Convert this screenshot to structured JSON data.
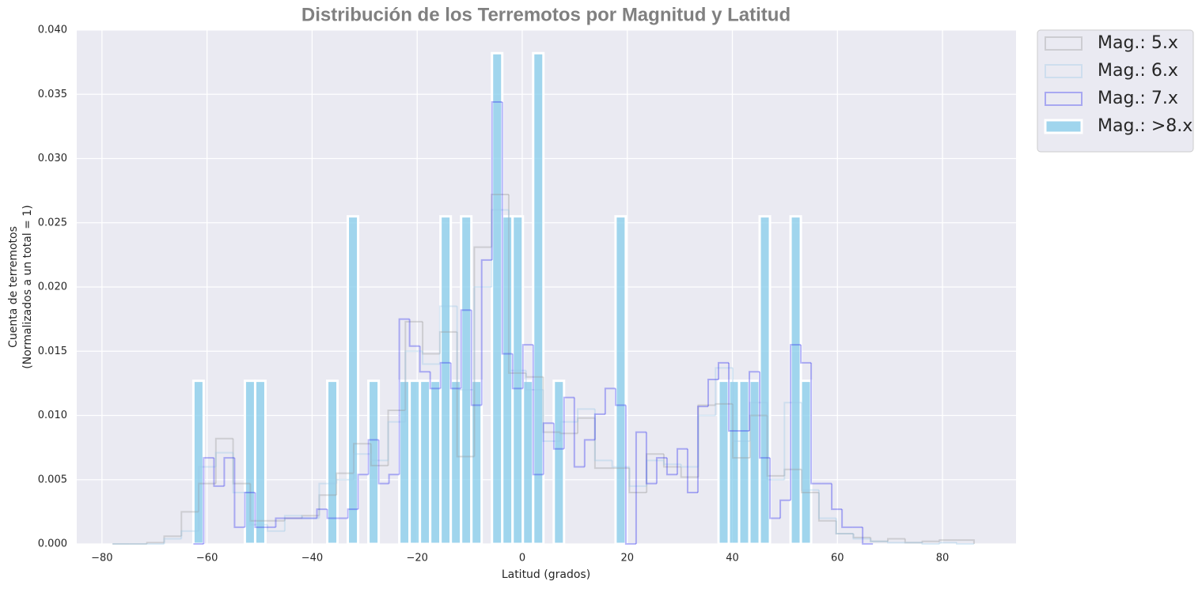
{
  "chart_data": {
    "type": "histogram",
    "title": "Distribución de los Terremotos por Magnitud y Latitud",
    "xlabel": "Latitud (grados)",
    "ylabel": [
      "Cuenta de terremotos",
      "(Normalizados a un total = 1)"
    ],
    "xlim": [
      -84.8,
      94.0
    ],
    "ylim": [
      0,
      0.04
    ],
    "xticks": [
      {
        "value": -80,
        "label": "−80"
      },
      {
        "value": -60,
        "label": "−60"
      },
      {
        "value": -40,
        "label": "−40"
      },
      {
        "value": -20,
        "label": "−20"
      },
      0,
      20,
      40,
      60,
      80
    ],
    "yticks": [
      {
        "value": 0,
        "label": "0.000"
      },
      {
        "value": 0.005,
        "label": "0.005"
      },
      {
        "value": 0.01,
        "label": "0.010"
      },
      {
        "value": 0.015,
        "label": "0.015"
      },
      {
        "value": 0.02,
        "label": "0.020"
      },
      {
        "value": 0.025,
        "label": "0.025"
      },
      {
        "value": 0.03,
        "label": "0.030"
      },
      {
        "value": 0.035,
        "label": "0.035"
      },
      {
        "value": 0.04,
        "label": "0.040"
      }
    ],
    "grid": true,
    "legend": "outside-upper-right",
    "series": [
      {
        "name": "Mag.: 5.x",
        "color": "#999999",
        "alpha": 0.35,
        "histtype": "step",
        "bins": [
          -78,
          -74.72,
          -71.44,
          -68.16,
          -64.88,
          -61.6,
          -58.32,
          -55.04,
          -51.76,
          -48.48,
          -45.2,
          -41.92,
          -38.64,
          -35.36,
          -32.08,
          -28.8,
          -25.52,
          -22.24,
          -18.96,
          -15.68,
          -12.4,
          -9.12,
          -5.84,
          -2.56,
          0.72,
          4.0,
          7.28,
          10.56,
          13.84,
          17.12,
          20.4,
          23.68,
          26.96,
          30.24,
          33.52,
          36.8,
          40.08,
          43.36,
          46.64,
          49.92,
          53.2,
          56.48,
          59.76,
          63.04,
          66.32,
          69.6,
          72.88,
          76.16,
          79.44,
          82.72,
          86.0
        ],
        "values": [
          0,
          0,
          0.0001,
          0.0006,
          0.0025,
          0.0047,
          0.0082,
          0.0047,
          0.0018,
          0.0018,
          0.002,
          0.0022,
          0.0038,
          0.0055,
          0.0078,
          0.0061,
          0.0104,
          0.0173,
          0.0148,
          0.0165,
          0.0068,
          0.0231,
          0.0272,
          0.0133,
          0.013,
          0.0087,
          0.0086,
          0.0098,
          0.0059,
          0.0059,
          0.004,
          0.007,
          0.006,
          0.0052,
          0.0108,
          0.0109,
          0.0067,
          0.01,
          0.0053,
          0.0058,
          0.004,
          0.0018,
          0.0008,
          0.0005,
          0.0002,
          0.0004,
          0.0001,
          0.0002,
          0.0003,
          0.0003
        ]
      },
      {
        "name": "Mag.: 6.x",
        "color": "#9cc8e8",
        "alpha": 0.35,
        "histtype": "step",
        "bins": [
          -78,
          -74.72,
          -71.44,
          -68.16,
          -64.88,
          -61.6,
          -58.32,
          -55.04,
          -51.76,
          -48.48,
          -45.2,
          -41.92,
          -38.64,
          -35.36,
          -32.08,
          -28.8,
          -25.52,
          -22.24,
          -18.96,
          -15.68,
          -12.4,
          -9.12,
          -5.84,
          -2.56,
          0.72,
          4.0,
          7.28,
          10.56,
          13.84,
          17.12,
          20.4,
          23.68,
          26.96,
          30.24,
          33.52,
          36.8,
          40.08,
          43.36,
          46.64,
          49.92,
          53.2,
          56.48,
          59.76,
          63.04,
          66.32,
          69.6,
          72.88,
          76.16,
          79.44,
          82.72,
          86.0
        ],
        "values": [
          0,
          0,
          0,
          0.0004,
          0.001,
          0.006,
          0.0071,
          0.004,
          0.0015,
          0.001,
          0.0022,
          0.002,
          0.0047,
          0.005,
          0.007,
          0.0065,
          0.0095,
          0.015,
          0.014,
          0.0185,
          0.012,
          0.02,
          0.026,
          0.0135,
          0.012,
          0.008,
          0.0095,
          0.0105,
          0.0065,
          0.006,
          0.0045,
          0.0065,
          0.0062,
          0.006,
          0.01,
          0.0137,
          0.008,
          0.011,
          0.005,
          0.011,
          0.0042,
          0.002,
          0.0008,
          0.0004,
          0.0002,
          0.0001,
          0.0001,
          0,
          0.0001,
          0
        ]
      },
      {
        "name": "Mag.: 7.x",
        "color": "#2f2ff0",
        "alpha": 0.35,
        "histtype": "step",
        "bins": [
          -62.6,
          -60.64,
          -58.68,
          -56.72,
          -54.76,
          -52.8,
          -50.84,
          -48.88,
          -46.92,
          -44.96,
          -43.0,
          -41.04,
          -39.08,
          -37.12,
          -35.16,
          -33.2,
          -31.24,
          -29.28,
          -27.32,
          -25.36,
          -23.4,
          -21.44,
          -19.48,
          -17.52,
          -15.56,
          -13.6,
          -11.64,
          -9.68,
          -7.72,
          -5.76,
          -3.8,
          -1.84,
          0.12,
          2.08,
          4.04,
          6.0,
          7.96,
          9.92,
          11.88,
          13.84,
          15.8,
          17.76,
          19.72,
          21.68,
          23.64,
          25.6,
          27.56,
          29.52,
          31.48,
          33.44,
          35.4,
          37.36,
          39.32,
          41.28,
          43.24,
          45.2,
          47.16,
          49.12,
          51.08,
          53.04,
          55.0,
          56.96,
          58.92,
          60.88,
          62.84,
          64.8,
          66.76
        ],
        "values": [
          0,
          0.0067,
          0.0045,
          0.0067,
          0.0013,
          0.004,
          0.0013,
          0.0013,
          0.002,
          0.002,
          0.002,
          0.002,
          0.0027,
          0.002,
          0.002,
          0.0027,
          0.0054,
          0.0081,
          0.0047,
          0.0054,
          0.0175,
          0.0154,
          0.0134,
          0.0121,
          0.0141,
          0.0121,
          0.0182,
          0.0108,
          0.0221,
          0.0344,
          0.0148,
          0.0121,
          0.0155,
          0.0054,
          0.0094,
          0.0074,
          0.0114,
          0.006,
          0.0081,
          0.0101,
          0.0121,
          0.0108,
          0,
          0.0087,
          0.0047,
          0.0067,
          0.0054,
          0.0074,
          0.004,
          0.0107,
          0.0128,
          0.0141,
          0.0088,
          0.0088,
          0.0134,
          0.0067,
          0.002,
          0.0034,
          0.0155,
          0.0141,
          0.0047,
          0.0047,
          0.0027,
          0.0013,
          0.0013,
          0
        ]
      },
      {
        "name": "Mag.: >8.x",
        "color": "#87ceeb",
        "alpha": 0.75,
        "histtype": "bar",
        "bins": [
          -62.6,
          -60.64,
          -58.68,
          -56.72,
          -54.76,
          -52.8,
          -50.84,
          -48.88,
          -46.92,
          -44.96,
          -43.0,
          -41.04,
          -39.08,
          -37.12,
          -35.16,
          -33.2,
          -31.24,
          -29.28,
          -27.32,
          -25.36,
          -23.4,
          -21.44,
          -19.48,
          -17.52,
          -15.56,
          -13.6,
          -11.64,
          -9.68,
          -7.72,
          -5.76,
          -3.8,
          -1.84,
          0.12,
          2.08,
          4.04,
          6.0,
          7.96,
          9.92,
          11.88,
          13.84,
          15.8,
          17.76,
          19.72,
          21.68,
          23.64,
          25.6,
          27.56,
          29.52,
          31.48,
          33.44,
          35.4,
          37.36,
          39.32,
          41.28,
          43.24,
          45.2,
          47.16,
          49.12,
          51.08,
          53.04,
          55.0
        ],
        "values": [
          0.0127,
          0,
          0,
          0,
          0,
          0.0127,
          0.0127,
          0,
          0,
          0,
          0,
          0,
          0,
          0.0127,
          0,
          0.0255,
          0,
          0.0127,
          0,
          0,
          0.0127,
          0.0127,
          0.0127,
          0.0127,
          0.0255,
          0.0127,
          0.0255,
          0.0127,
          0,
          0.0382,
          0.0255,
          0.0255,
          0.0127,
          0.0382,
          0,
          0.0127,
          0,
          0,
          0,
          0,
          0,
          0.0255,
          0,
          0,
          0,
          0,
          0,
          0,
          0,
          0,
          0,
          0.0127,
          0.0127,
          0.0127,
          0.0127,
          0.0255,
          0,
          0,
          0.0255,
          0.0127
        ]
      }
    ]
  }
}
